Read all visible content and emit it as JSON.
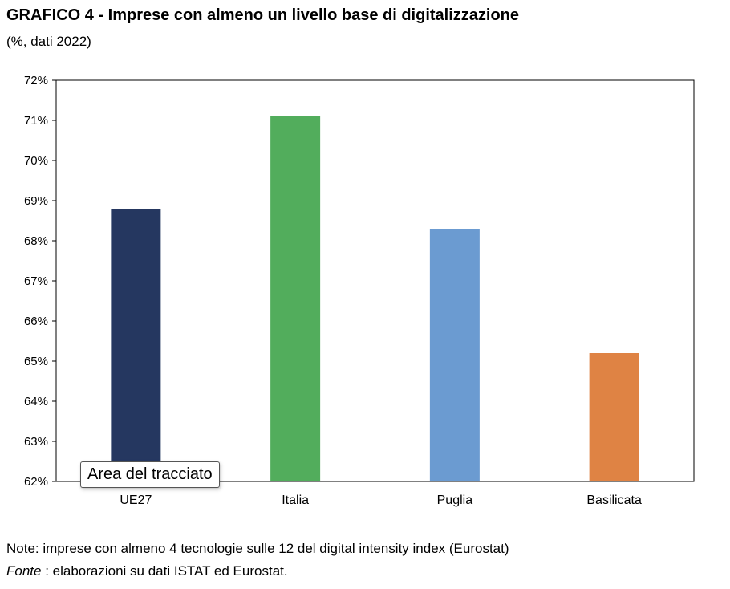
{
  "header": {
    "title": "GRAFICO 4 - Imprese con almeno un livello base di digitalizzazione",
    "subtitle": "(%, dati 2022)"
  },
  "tooltip": {
    "label": "Area del tracciato"
  },
  "footer": {
    "note": "Note: imprese con almeno 4 tecnologie sulle 12 del digital intensity index (Eurostat)",
    "source_label": "Fonte",
    "source_text": " : elaborazioni su dati ISTAT ed Eurostat."
  },
  "chart_data": {
    "type": "bar",
    "categories": [
      "UE27",
      "Italia",
      "Puglia",
      "Basilicata"
    ],
    "values": [
      68.8,
      71.1,
      68.3,
      65.2
    ],
    "colors": [
      "#253760",
      "#52ad5c",
      "#6b9bd1",
      "#df8344"
    ],
    "ylim": [
      62,
      72
    ],
    "yticks": [
      "62%",
      "63%",
      "64%",
      "65%",
      "66%",
      "67%",
      "68%",
      "69%",
      "70%",
      "71%",
      "72%"
    ],
    "title": "GRAFICO 4 - Imprese con almeno un livello base di digitalizzazione",
    "subtitle": "(%, dati 2022)",
    "xlabel": "",
    "ylabel": "",
    "grid": false,
    "legend": "none"
  }
}
